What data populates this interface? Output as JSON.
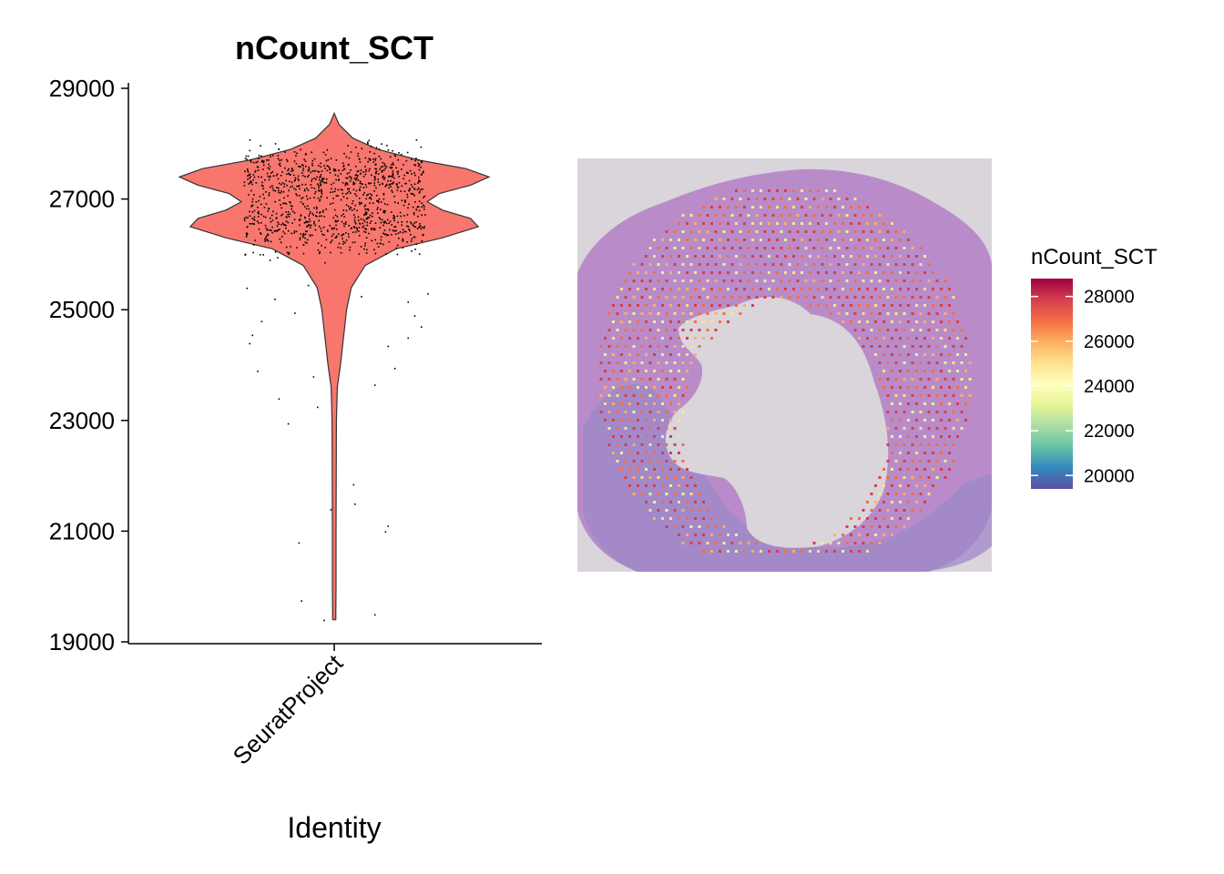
{
  "chart_data": [
    {
      "type": "violin",
      "title": "nCount_SCT",
      "xlabel": "Identity",
      "ylabel": "",
      "categories": [
        "SeuratProject"
      ],
      "ylim": [
        19000,
        29000
      ],
      "yticks": [
        19000,
        21000,
        23000,
        25000,
        27000,
        29000
      ],
      "fill_color": "#F8766D",
      "point_color": "#000000",
      "grid": false,
      "violin_profile": [
        {
          "y": 19400,
          "density": 0.01
        },
        {
          "y": 20000,
          "density": 0.012
        },
        {
          "y": 21000,
          "density": 0.012
        },
        {
          "y": 22000,
          "density": 0.013
        },
        {
          "y": 23000,
          "density": 0.014
        },
        {
          "y": 23600,
          "density": 0.02
        },
        {
          "y": 24000,
          "density": 0.04
        },
        {
          "y": 24500,
          "density": 0.06
        },
        {
          "y": 25000,
          "density": 0.08
        },
        {
          "y": 25400,
          "density": 0.11
        },
        {
          "y": 25800,
          "density": 0.2
        },
        {
          "y": 26100,
          "density": 0.4
        },
        {
          "y": 26300,
          "density": 0.7
        },
        {
          "y": 26500,
          "density": 0.93
        },
        {
          "y": 26650,
          "density": 0.88
        },
        {
          "y": 26800,
          "density": 0.7
        },
        {
          "y": 26950,
          "density": 0.6
        },
        {
          "y": 27100,
          "density": 0.68
        },
        {
          "y": 27250,
          "density": 0.88
        },
        {
          "y": 27400,
          "density": 1.0
        },
        {
          "y": 27550,
          "density": 0.85
        },
        {
          "y": 27700,
          "density": 0.55
        },
        {
          "y": 27900,
          "density": 0.28
        },
        {
          "y": 28100,
          "density": 0.12
        },
        {
          "y": 28350,
          "density": 0.03
        },
        {
          "y": 28550,
          "density": 0.0
        }
      ],
      "outlier_points": [
        {
          "x": -0.08,
          "y": 19400
        },
        {
          "x": -0.25,
          "y": 19750
        },
        {
          "x": 0.3,
          "y": 19500
        },
        {
          "x": -0.27,
          "y": 20800
        },
        {
          "x": 0.38,
          "y": 21000
        },
        {
          "x": 0.4,
          "y": 21100
        },
        {
          "x": 0.15,
          "y": 21500
        },
        {
          "x": 0.14,
          "y": 21850
        },
        {
          "x": -0.03,
          "y": 21400
        },
        {
          "x": -0.35,
          "y": 22950
        },
        {
          "x": -0.42,
          "y": 23400
        },
        {
          "x": -0.13,
          "y": 23250
        },
        {
          "x": 0.3,
          "y": 23650
        },
        {
          "x": -0.16,
          "y": 23800
        },
        {
          "x": -0.58,
          "y": 23900
        },
        {
          "x": 0.45,
          "y": 23950
        },
        {
          "x": -0.64,
          "y": 24400
        },
        {
          "x": -0.62,
          "y": 24550
        },
        {
          "x": 0.55,
          "y": 24500
        },
        {
          "x": -0.55,
          "y": 24800
        },
        {
          "x": 0.4,
          "y": 24350
        },
        {
          "x": -0.3,
          "y": 24950
        },
        {
          "x": 0.6,
          "y": 24900
        },
        {
          "x": 0.65,
          "y": 24700
        },
        {
          "x": 0.55,
          "y": 25150
        },
        {
          "x": -0.45,
          "y": 25200
        },
        {
          "x": 0.7,
          "y": 25300
        },
        {
          "x": -0.66,
          "y": 25400
        },
        {
          "x": 0.2,
          "y": 25250
        },
        {
          "x": -0.2,
          "y": 25450
        }
      ],
      "dense_cluster": {
        "y_range": [
          25600,
          28600
        ],
        "x_spread": 0.68
      }
    },
    {
      "type": "spatial",
      "legend_title": "nCount_SCT",
      "colorbar_ticks": [
        20000,
        22000,
        24000,
        26000,
        28000
      ],
      "colorbar_range": [
        19400,
        28800
      ],
      "colormap": "Spectral (reversed)",
      "colormap_stops": [
        "#5E4FA2",
        "#3288BD",
        "#66C2A5",
        "#ABDDA4",
        "#E6F598",
        "#FFFFBF",
        "#FEE08B",
        "#FDAE61",
        "#F46D43",
        "#D53E4F",
        "#9E0142"
      ],
      "tissue_color": "#B98CC9",
      "background_color": "#D9D5DA"
    }
  ]
}
